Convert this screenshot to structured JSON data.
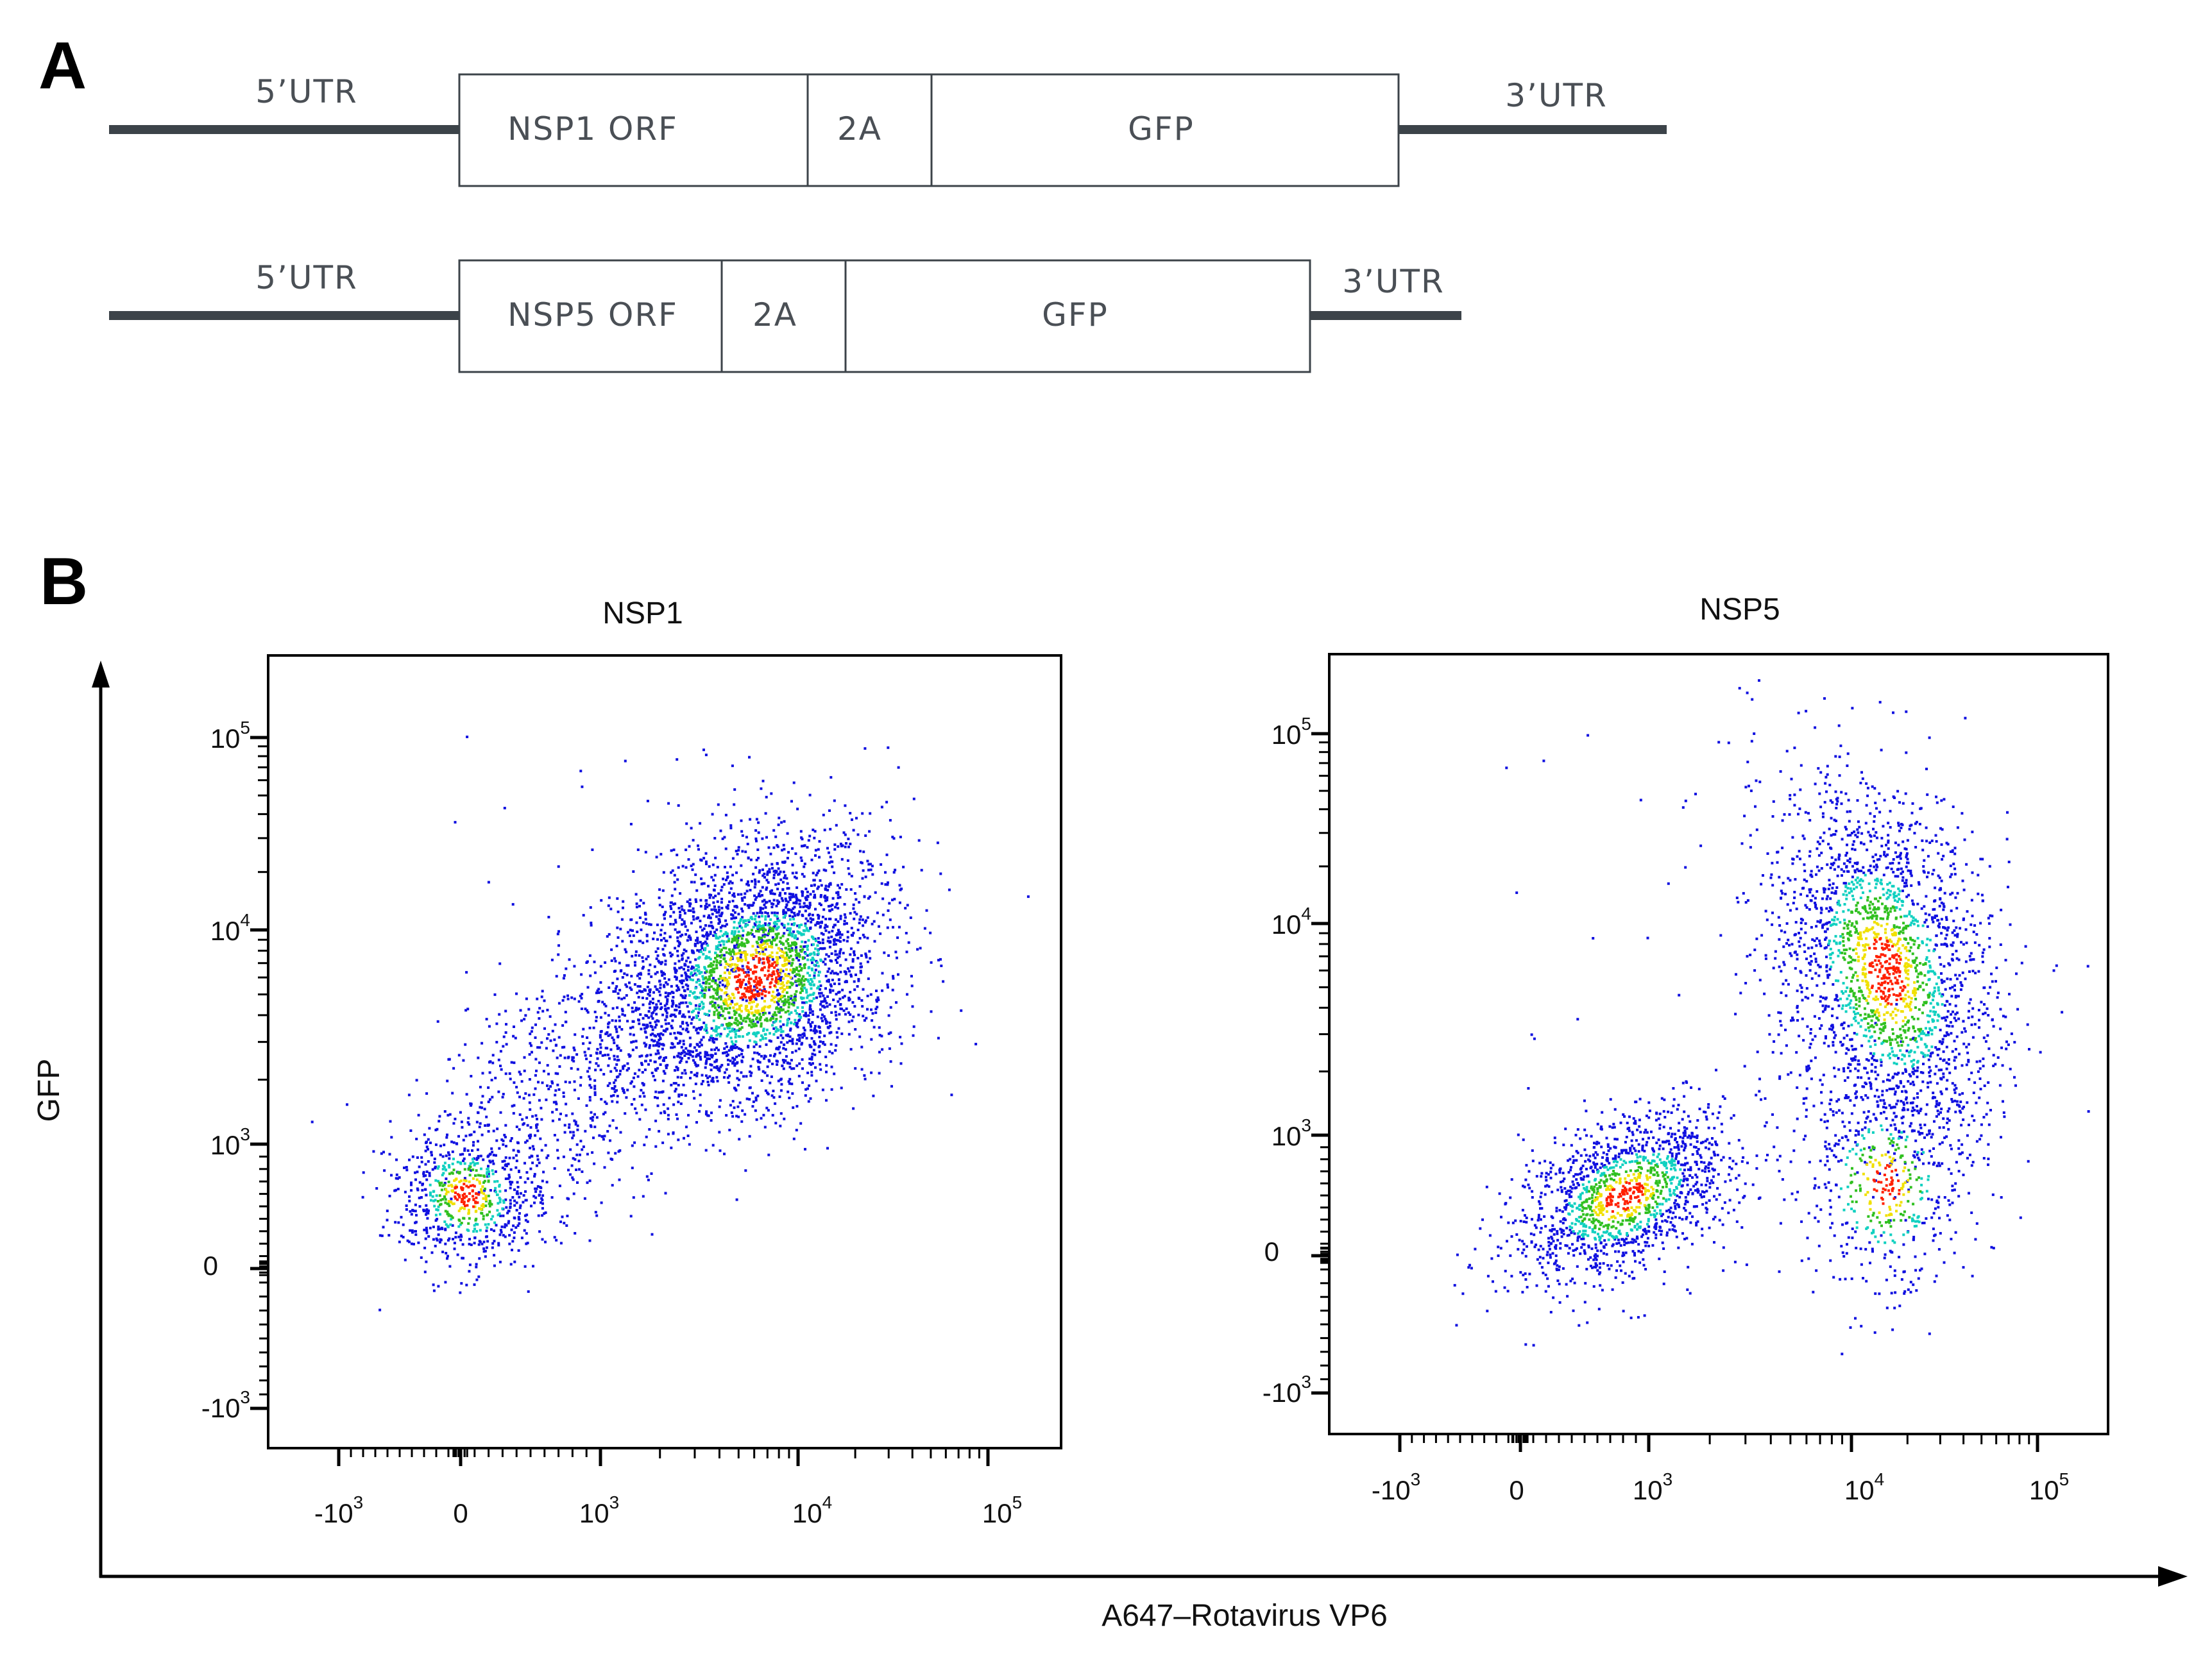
{
  "panel_a": {
    "label": "A",
    "constructs": [
      {
        "utr5": "5’UTR",
        "orf": "NSP1 ORF",
        "linker": "2A",
        "reporter": "GFP",
        "utr3": "3’UTR"
      },
      {
        "utr5": "5’UTR",
        "orf": "NSP5 ORF",
        "linker": "2A",
        "reporter": "GFP",
        "utr3": "3’UTR"
      }
    ]
  },
  "panel_b": {
    "label": "B",
    "y_axis_label": "GFP",
    "x_axis_label": "A647–Rotavirus  VP6",
    "colors": {
      "low": "#1010e0",
      "mid": "#10d0c0",
      "high": "#30c020",
      "peak": "#ff2000",
      "warm": "#f0e000"
    }
  },
  "chart_data": [
    {
      "type": "scatter",
      "title": "NSP1",
      "xlabel": "A647–Rotavirus  VP6",
      "ylabel": "GFP",
      "x_scale": "biexponential",
      "y_scale": "biexponential",
      "x_ticks": [
        "-10^3",
        "0",
        "10^3",
        "10^4",
        "10^5"
      ],
      "y_ticks": [
        "10^5",
        "10^4",
        "10^3",
        "0",
        "-10^3"
      ],
      "populations": [
        {
          "name": "GFP-low VP6-low cluster",
          "x_center": 30,
          "y_center": 600,
          "density": "medium"
        },
        {
          "name": "GFP-high VP6-high cluster",
          "x_center": 6000,
          "y_center": 6000,
          "density": "high"
        },
        {
          "name": "diagonal transitional events",
          "x_from": 300,
          "x_to": 15000,
          "y_from": 1000,
          "y_to": 20000,
          "density": "low"
        }
      ]
    },
    {
      "type": "scatter",
      "title": "NSP5",
      "xlabel": "A647–Rotavirus  VP6",
      "ylabel": "GFP",
      "x_scale": "biexponential",
      "y_scale": "biexponential",
      "x_ticks": [
        "-10^3",
        "0",
        "10^3",
        "10^4",
        "10^5"
      ],
      "y_ticks": [
        "10^5",
        "10^4",
        "10^3",
        "0",
        "-10^3"
      ],
      "populations": [
        {
          "name": "GFP-low VP6-low cluster",
          "x_center": 800,
          "y_center": 500,
          "density": "high"
        },
        {
          "name": "GFP-high VP6-high cluster",
          "x_center": 15000,
          "y_center": 6000,
          "density": "high"
        },
        {
          "name": "VP6-high GFP-low events",
          "x_center": 15000,
          "y_center": 600,
          "density": "low"
        }
      ]
    }
  ]
}
